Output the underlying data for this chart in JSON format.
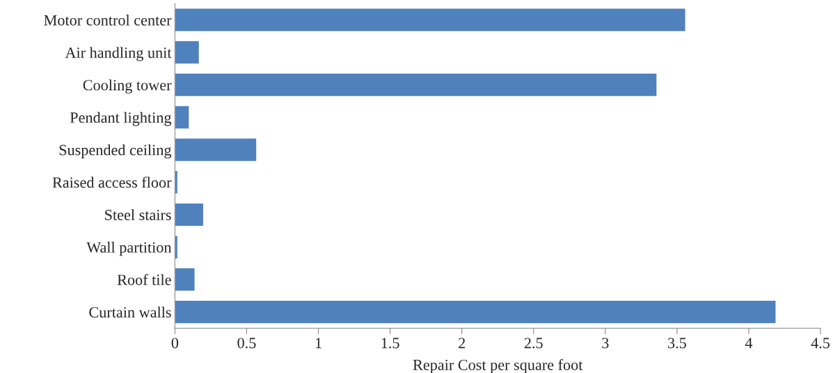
{
  "chart_data": {
    "type": "bar",
    "orientation": "horizontal",
    "categories": [
      "Motor control center",
      "Air handling unit",
      "Cooling tower",
      "Pendant lighting",
      "Suspended ceiling",
      "Raised access floor",
      "Steel stairs",
      "Wall partition",
      "Roof tile",
      "Curtain walls"
    ],
    "values": [
      3.56,
      0.17,
      3.36,
      0.1,
      0.57,
      0.02,
      0.2,
      0.02,
      0.14,
      4.19
    ],
    "color": "#4f81bd",
    "xlabel": "Repair Cost per square foot",
    "xlim": [
      0,
      4.5
    ],
    "xticks": [
      0,
      0.5,
      1,
      1.5,
      2,
      2.5,
      3,
      3.5,
      4,
      4.5
    ],
    "grid": false,
    "legend": false
  }
}
